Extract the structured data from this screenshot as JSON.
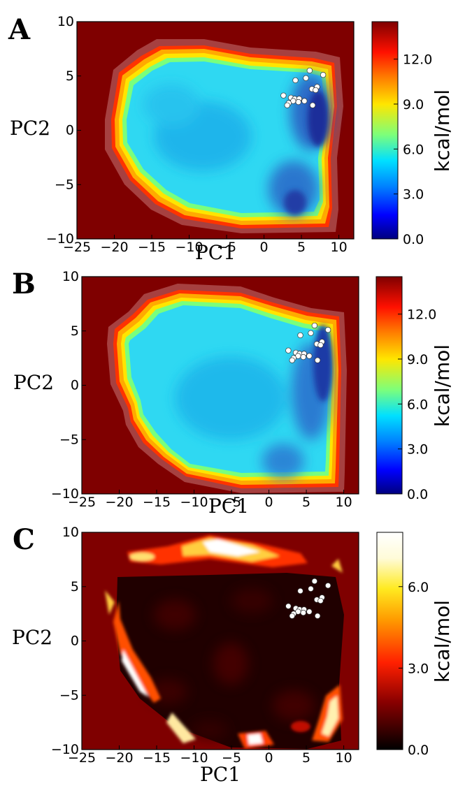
{
  "chart_data": [
    {
      "panel": "A",
      "type": "heatmap",
      "xlabel": "PC1",
      "ylabel": "PC2",
      "xlim": [
        -25,
        12
      ],
      "ylim": [
        -10,
        10
      ],
      "x_ticks": [
        "−25",
        "−20",
        "−15",
        "−10",
        "−5",
        "0",
        "5",
        "10"
      ],
      "y_ticks": [
        "−10",
        "−5",
        "0",
        "5",
        "10"
      ],
      "colorbar": {
        "label": "kcal/mol",
        "range": [
          0,
          14.5
        ],
        "ticks": [
          "0.0",
          "3.0",
          "6.0",
          "9.0",
          "12.0"
        ],
        "colormap": "jet"
      },
      "scatter_points": [
        [
          6.1,
          5.5
        ],
        [
          4.2,
          4.6
        ],
        [
          5.6,
          4.8
        ],
        [
          7.9,
          5.1
        ],
        [
          7.1,
          4.0
        ],
        [
          6.4,
          3.8
        ],
        [
          6.9,
          3.7
        ],
        [
          2.6,
          3.2
        ],
        [
          3.6,
          3.0
        ],
        [
          4.1,
          2.9
        ],
        [
          4.7,
          2.9
        ],
        [
          5.4,
          2.7
        ],
        [
          3.9,
          2.7
        ],
        [
          4.6,
          2.6
        ],
        [
          3.3,
          2.5
        ],
        [
          3.1,
          2.3
        ],
        [
          6.5,
          2.3
        ]
      ]
    },
    {
      "panel": "B",
      "type": "heatmap",
      "xlabel": "PC1",
      "ylabel": "PC2",
      "xlim": [
        -25,
        12
      ],
      "ylim": [
        -10,
        10
      ],
      "x_ticks": [
        "−25",
        "−20",
        "−15",
        "−10",
        "−5",
        "0",
        "5",
        "10"
      ],
      "y_ticks": [
        "−10",
        "−5",
        "0",
        "5",
        "10"
      ],
      "colorbar": {
        "label": "kcal/mol",
        "range": [
          0,
          14.5
        ],
        "ticks": [
          "0.0",
          "3.0",
          "6.0",
          "9.0",
          "12.0"
        ],
        "colormap": "jet"
      },
      "scatter_points": [
        [
          6.1,
          5.5
        ],
        [
          4.2,
          4.6
        ],
        [
          5.6,
          4.8
        ],
        [
          7.9,
          5.1
        ],
        [
          7.1,
          4.0
        ],
        [
          6.4,
          3.8
        ],
        [
          6.9,
          3.7
        ],
        [
          2.6,
          3.2
        ],
        [
          3.6,
          3.0
        ],
        [
          4.1,
          2.9
        ],
        [
          4.7,
          2.9
        ],
        [
          5.4,
          2.7
        ],
        [
          3.9,
          2.7
        ],
        [
          4.6,
          2.6
        ],
        [
          3.3,
          2.5
        ],
        [
          3.1,
          2.3
        ],
        [
          6.5,
          2.3
        ]
      ]
    },
    {
      "panel": "C",
      "type": "heatmap",
      "xlabel": "PC1",
      "ylabel": "PC2",
      "xlim": [
        -25,
        12
      ],
      "ylim": [
        -10,
        10
      ],
      "x_ticks": [
        "−25",
        "−20",
        "−15",
        "−10",
        "−5",
        "0",
        "5",
        "10"
      ],
      "y_ticks": [
        "−10",
        "−5",
        "0",
        "5",
        "10"
      ],
      "colorbar": {
        "label": "kcal/mol",
        "range": [
          0,
          8
        ],
        "ticks": [
          "0.0",
          "3.0",
          "6.0"
        ],
        "colormap": "hot"
      },
      "scatter_points": [
        [
          6.1,
          5.5
        ],
        [
          4.2,
          4.6
        ],
        [
          5.6,
          4.8
        ],
        [
          7.9,
          5.1
        ],
        [
          7.1,
          4.0
        ],
        [
          6.4,
          3.8
        ],
        [
          6.9,
          3.7
        ],
        [
          2.6,
          3.2
        ],
        [
          3.6,
          3.0
        ],
        [
          4.1,
          2.9
        ],
        [
          4.7,
          2.9
        ],
        [
          5.4,
          2.7
        ],
        [
          3.9,
          2.7
        ],
        [
          4.6,
          2.6
        ],
        [
          3.3,
          2.5
        ],
        [
          3.1,
          2.3
        ],
        [
          6.5,
          2.3
        ]
      ]
    }
  ]
}
